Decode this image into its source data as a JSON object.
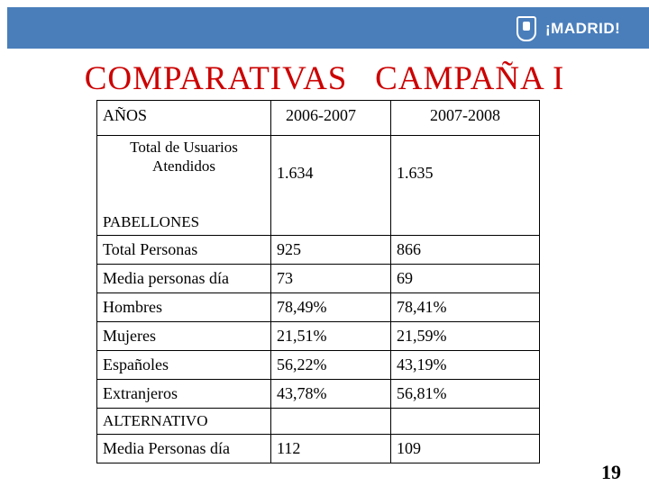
{
  "header": {
    "logo_text": "¡MADRID!"
  },
  "title": "COMPARATIVAS   CAMPAÑA I",
  "table": {
    "col_label": "AÑOS",
    "years": [
      "2006-2007",
      "2007-2008"
    ],
    "users": {
      "label": "Total de Usuarios Atendidos",
      "values": [
        "1.634",
        "1.635"
      ]
    },
    "section_pabellones": "PABELLONES",
    "pabellones_rows": [
      {
        "label": "Total Personas",
        "v1": "925",
        "v2": "866"
      },
      {
        "label": "Media personas día",
        "v1": "73",
        "v2": "69"
      },
      {
        "label": "Hombres",
        "v1": "78,49%",
        "v2": "78,41%"
      },
      {
        "label": "Mujeres",
        "v1": "21,51%",
        "v2": "21,59%"
      },
      {
        "label": "Españoles",
        "v1": "56,22%",
        "v2": "43,19%"
      },
      {
        "label": "Extranjeros",
        "v1": "43,78%",
        "v2": "56,81%"
      }
    ],
    "section_alternativo": "ALTERNATIVO",
    "alternativo_rows": [
      {
        "label": "Media Personas día",
        "v1": "112",
        "v2": "109"
      }
    ]
  },
  "page_number": "19",
  "colors": {
    "header_bar": "#4a7ebb",
    "title": "#cc0000"
  }
}
